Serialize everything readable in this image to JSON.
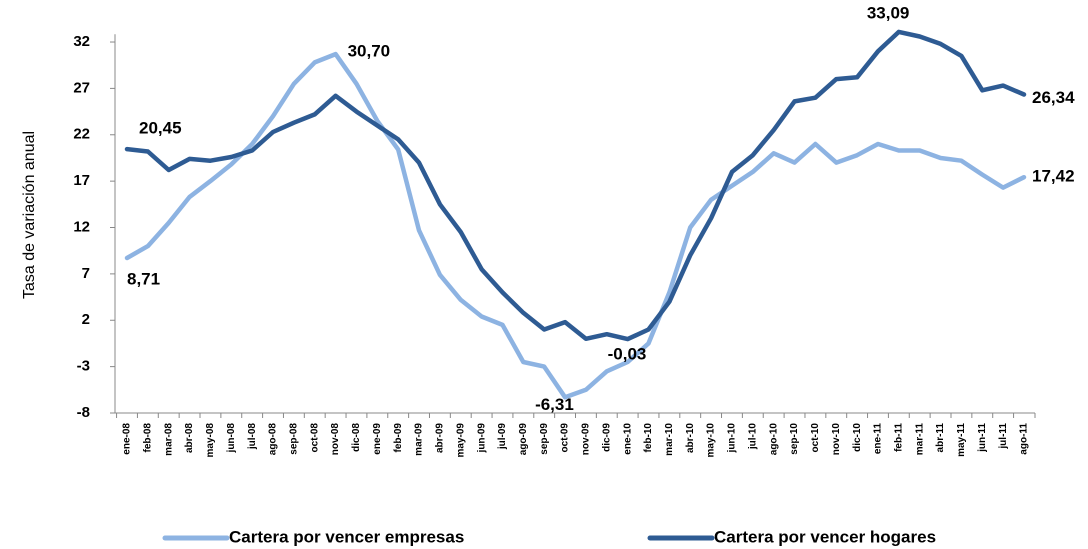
{
  "chart_data": {
    "type": "line",
    "y_axis_label": "Tasa de variación anual",
    "categories": [
      "ene-08",
      "feb-08",
      "mar-08",
      "abr-08",
      "may-08",
      "jun-08",
      "jul-08",
      "ago-08",
      "sep-08",
      "oct-08",
      "nov-08",
      "dic-08",
      "ene-09",
      "feb-09",
      "mar-09",
      "abr-09",
      "may-09",
      "jun-09",
      "jul-09",
      "ago-09",
      "sep-09",
      "oct-09",
      "nov-09",
      "dic-09",
      "ene-10",
      "feb-10",
      "mar-10",
      "abr-10",
      "may-10",
      "jun-10",
      "jul-10",
      "ago-10",
      "sep-10",
      "oct-10",
      "nov-10",
      "dic-10",
      "ene-11",
      "feb-11",
      "mar-11",
      "abr-11",
      "may-11",
      "jun-11",
      "jul-11",
      "ago-11"
    ],
    "series": [
      {
        "name": "Cartera por vencer empresas",
        "color": "#8db3e2",
        "values": [
          8.71,
          10,
          12.5,
          15.3,
          17,
          18.8,
          21,
          24,
          27.5,
          29.8,
          30.7,
          27.5,
          23.5,
          20.4,
          11.7,
          6.9,
          4.2,
          2.4,
          1.5,
          -2.5,
          -3,
          -6.31,
          -5.5,
          -3.5,
          -2.5,
          -0.5,
          5,
          12,
          15,
          16.5,
          18,
          20,
          19,
          21,
          19,
          19.8,
          21,
          20.3,
          20.3,
          19.5,
          19.2,
          17.7,
          16.3,
          17.42
        ],
        "value_labels": [
          "8,71",
          null,
          null,
          null,
          null,
          null,
          null,
          null,
          null,
          null,
          "30,70",
          null,
          null,
          null,
          null,
          null,
          null,
          null,
          null,
          null,
          null,
          "-6,31",
          null,
          null,
          null,
          null,
          null,
          null,
          null,
          null,
          null,
          null,
          null,
          null,
          null,
          null,
          null,
          null,
          null,
          null,
          null,
          null,
          null,
          "17,42"
        ]
      },
      {
        "name": "Cartera por vencer hogares",
        "color": "#2e5b93",
        "values": [
          20.45,
          20.2,
          18.2,
          19.4,
          19.2,
          19.6,
          20.3,
          22.3,
          23.3,
          24.2,
          26.2,
          24.5,
          23,
          21.5,
          19,
          14.5,
          11.5,
          7.5,
          5,
          2.8,
          1,
          1.8,
          0,
          0.5,
          -0.03,
          1,
          4,
          9,
          13,
          18,
          19.8,
          22.5,
          25.6,
          26,
          28,
          28.2,
          31,
          33.09,
          32.6,
          31.8,
          30.5,
          26.8,
          27.3,
          26.34
        ],
        "value_labels": [
          "20,45",
          null,
          null,
          null,
          null,
          null,
          null,
          null,
          null,
          null,
          null,
          null,
          null,
          null,
          null,
          null,
          null,
          null,
          null,
          null,
          null,
          null,
          null,
          null,
          "-0,03",
          null,
          null,
          null,
          null,
          null,
          null,
          null,
          null,
          null,
          null,
          null,
          null,
          "33,09",
          null,
          null,
          null,
          null,
          null,
          "26,34"
        ]
      }
    ],
    "ylim": [
      -8,
      35
    ],
    "yticks": [
      -8,
      -3,
      2,
      7,
      12,
      17,
      22,
      27,
      32
    ],
    "legend": "bottom"
  }
}
